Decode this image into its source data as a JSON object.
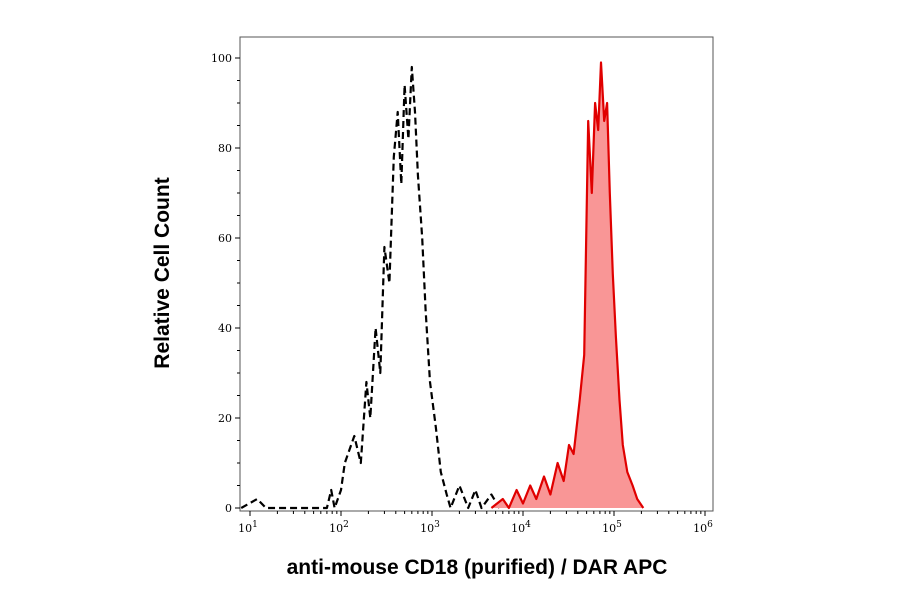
{
  "chart_data": {
    "type": "area",
    "title": "",
    "xlabel": "anti-mouse CD18 (purified) / DAR APC",
    "ylabel": "Relative Cell Count",
    "x_scale": "log",
    "xlim": [
      10,
      1000000
    ],
    "ylim": [
      0,
      100
    ],
    "x_ticks": [
      {
        "base": "10",
        "exp": "1",
        "value": 10
      },
      {
        "base": "10",
        "exp": "2",
        "value": 100
      },
      {
        "base": "10",
        "exp": "3",
        "value": 1000
      },
      {
        "base": "10",
        "exp": "4",
        "value": 10000
      },
      {
        "base": "10",
        "exp": "5",
        "value": 100000
      },
      {
        "base": "10",
        "exp": "6",
        "value": 1000000
      }
    ],
    "y_ticks": [
      "0",
      "20",
      "40",
      "60",
      "80",
      "100"
    ],
    "grid": false,
    "legend": "none",
    "series": [
      {
        "style": "dashed line, no fill",
        "color": "#000000",
        "points": [
          [
            8,
            0
          ],
          [
            12,
            2
          ],
          [
            15,
            0
          ],
          [
            70,
            0
          ],
          [
            78,
            4
          ],
          [
            85,
            0
          ],
          [
            100,
            4
          ],
          [
            110,
            10
          ],
          [
            140,
            16
          ],
          [
            165,
            10
          ],
          [
            190,
            28
          ],
          [
            210,
            20
          ],
          [
            240,
            40
          ],
          [
            270,
            30
          ],
          [
            300,
            58
          ],
          [
            340,
            50
          ],
          [
            380,
            78
          ],
          [
            420,
            88
          ],
          [
            460,
            72
          ],
          [
            500,
            94
          ],
          [
            550,
            82
          ],
          [
            600,
            98
          ],
          [
            650,
            88
          ],
          [
            700,
            74
          ],
          [
            780,
            60
          ],
          [
            850,
            44
          ],
          [
            950,
            28
          ],
          [
            1100,
            18
          ],
          [
            1250,
            8
          ],
          [
            1450,
            3
          ],
          [
            1600,
            0
          ],
          [
            2000,
            5
          ],
          [
            2500,
            0
          ],
          [
            3000,
            4
          ],
          [
            3500,
            0
          ],
          [
            4500,
            3
          ],
          [
            5500,
            0
          ]
        ]
      },
      {
        "style": "solid line, filled",
        "color": "#e00000",
        "fill": "#f99696",
        "points": [
          [
            4500,
            0
          ],
          [
            6000,
            2
          ],
          [
            7000,
            0
          ],
          [
            8500,
            4
          ],
          [
            10000,
            1
          ],
          [
            12000,
            5
          ],
          [
            14000,
            2
          ],
          [
            17000,
            7
          ],
          [
            20000,
            3
          ],
          [
            24000,
            10
          ],
          [
            28000,
            6
          ],
          [
            32000,
            14
          ],
          [
            36000,
            12
          ],
          [
            42000,
            24
          ],
          [
            47000,
            34
          ],
          [
            52000,
            86
          ],
          [
            57000,
            70
          ],
          [
            62000,
            90
          ],
          [
            67000,
            84
          ],
          [
            72000,
            99
          ],
          [
            78000,
            86
          ],
          [
            84000,
            90
          ],
          [
            90000,
            70
          ],
          [
            97000,
            52
          ],
          [
            105000,
            38
          ],
          [
            115000,
            24
          ],
          [
            125000,
            14
          ],
          [
            140000,
            8
          ],
          [
            160000,
            5
          ],
          [
            180000,
            2
          ],
          [
            210000,
            0
          ]
        ]
      }
    ]
  }
}
